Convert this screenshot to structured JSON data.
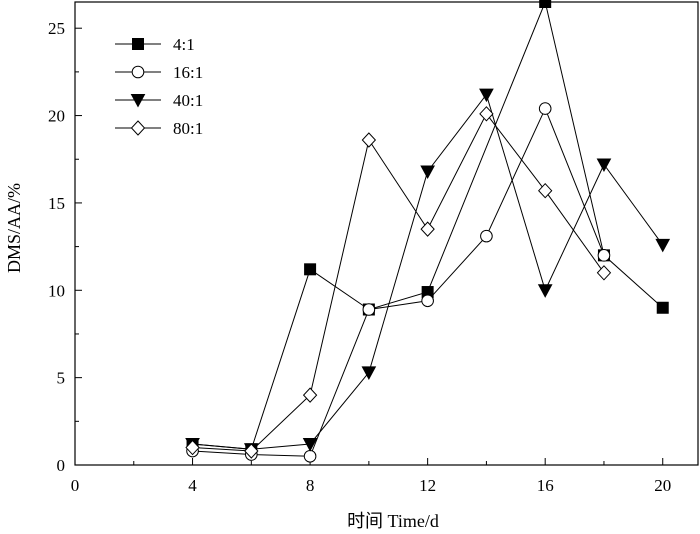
{
  "chart_data": {
    "type": "line",
    "xlabel": "时间 Time/d",
    "ylabel": "DMS/AA/%",
    "xlim": [
      0,
      21.2
    ],
    "ylim": [
      0,
      26.5
    ],
    "xticks": [
      0,
      4,
      8,
      12,
      16,
      20
    ],
    "yticks": [
      0,
      5,
      10,
      15,
      20,
      25
    ],
    "grid": false,
    "legend_position": "top-left",
    "series": [
      {
        "name": "4:1",
        "marker": "square-filled",
        "x": [
          4,
          6,
          8,
          10,
          12,
          16,
          18,
          20
        ],
        "y": [
          1.2,
          0.9,
          11.2,
          8.9,
          9.9,
          26.5,
          12.0,
          9.0
        ]
      },
      {
        "name": "16:1",
        "marker": "circle-open",
        "x": [
          4,
          6,
          8,
          10,
          12,
          14,
          16,
          18
        ],
        "y": [
          0.8,
          0.6,
          0.5,
          8.9,
          9.4,
          13.1,
          20.4,
          12.0
        ]
      },
      {
        "name": "40:1",
        "marker": "triangle-down-filled",
        "x": [
          4,
          6,
          8,
          10,
          12,
          14,
          16,
          18,
          20
        ],
        "y": [
          1.2,
          0.9,
          1.2,
          5.3,
          16.8,
          21.2,
          10.0,
          17.2,
          12.6
        ]
      },
      {
        "name": "80:1",
        "marker": "diamond-open",
        "x": [
          4,
          6,
          8,
          10,
          12,
          14,
          16,
          18
        ],
        "y": [
          1.0,
          0.8,
          4.0,
          18.6,
          13.5,
          20.1,
          15.7,
          11.0
        ]
      }
    ]
  }
}
